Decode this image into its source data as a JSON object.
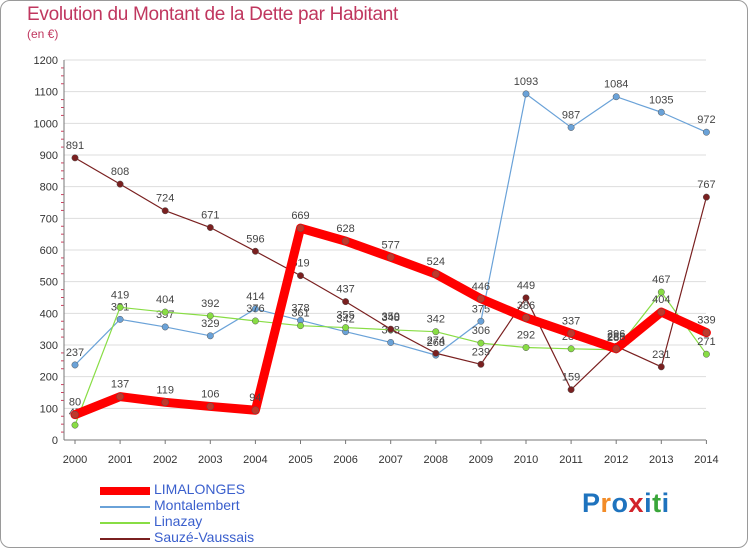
{
  "title": "Evolution du Montant de la Dette par Habitant",
  "subtitle": "(en €)",
  "logo": {
    "text": "Proxiti",
    "colors": [
      "#1e73be",
      "#f28c28",
      "#1e73be",
      "#d2232a",
      "#1e73be",
      "#3aa63a",
      "#1e73be"
    ]
  },
  "chart_data": {
    "type": "line",
    "title": "Evolution du Montant de la Dette par Habitant",
    "ylabel": "(en €)",
    "xlabel": "",
    "ylim": [
      0,
      1200
    ],
    "yticks": [
      0,
      100,
      200,
      300,
      400,
      500,
      600,
      700,
      800,
      900,
      1000,
      1100,
      1200
    ],
    "x": [
      2000,
      2001,
      2002,
      2003,
      2004,
      2005,
      2006,
      2007,
      2008,
      2009,
      2010,
      2011,
      2012,
      2013,
      2014
    ],
    "grid": "horizontal",
    "legend_position": "bottom-left",
    "series": [
      {
        "name": "LIMALONGES",
        "color": "#ff0000",
        "emphasis": true,
        "values": [
          80,
          137,
          119,
          106,
          94,
          669,
          628,
          577,
          524,
          446,
          386,
          337,
          288,
          404,
          339
        ]
      },
      {
        "name": "Montalembert",
        "color": "#6aa2d8",
        "values": [
          237,
          381,
          357,
          329,
          414,
          378,
          342,
          308,
          268,
          375,
          1093,
          987,
          1084,
          1035,
          972
        ]
      },
      {
        "name": "Linazay",
        "color": "#88dd44",
        "values": [
          47,
          419,
          404,
          392,
          376,
          361,
          355,
          348,
          342,
          306,
          292,
          288,
          285,
          467,
          271
        ]
      },
      {
        "name": "Sauzé-Vaussais",
        "color": "#7a2020",
        "values": [
          891,
          808,
          724,
          671,
          596,
          519,
          437,
          350,
          274,
          239,
          449,
          159,
          296,
          231,
          767
        ]
      }
    ]
  }
}
